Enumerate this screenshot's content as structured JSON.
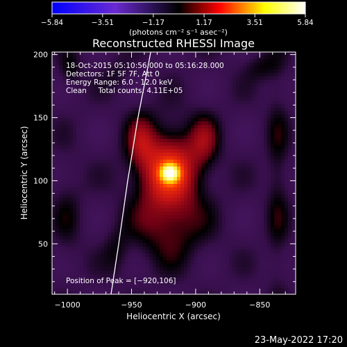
{
  "chart_data": {
    "type": "heatmap",
    "title": "Reconstructed RHESSI Image",
    "xlabel": "Heliocentric X (arcsec)",
    "ylabel": "Heliocentric Y (arcsec)",
    "xlim": [
      -1012,
      -822
    ],
    "ylim": [
      10,
      202
    ],
    "x_ticks": [
      -1000,
      -950,
      -900,
      -850
    ],
    "x_tick_labels": [
      "−1000",
      "−950",
      "−900",
      "−850"
    ],
    "y_ticks": [
      50,
      100,
      150,
      200
    ],
    "y_tick_labels": [
      "50",
      "100",
      "150",
      "200"
    ],
    "colorbar": {
      "min": -5.84,
      "max": 5.84,
      "ticks": [
        -5.84,
        -3.51,
        -1.17,
        1.17,
        3.51,
        5.84
      ],
      "tick_labels": [
        "−5.84",
        "−3.51",
        "−1.17",
        "1.17",
        "3.51",
        "5.84"
      ],
      "unit_label": "(photons cm⁻² s⁻¹ asec⁻²)",
      "colors": [
        "#0000ff",
        "#6a2ad0",
        "#000000",
        "#ff0000",
        "#ffff00",
        "#ffffff"
      ]
    },
    "info_lines": [
      "18-Oct-2015 05:10:56.000 to 05:16:28.000",
      "Detectors: 1F 5F 7F, Att 0",
      "Energy Range: 6.0 - 12.0 keV",
      "Clean     Total counts: 4.11E+05"
    ],
    "peak_label": "Position of Peak = [−920,106]",
    "peak": {
      "x": -920,
      "y": 106,
      "value": 5.84
    },
    "components": [
      {
        "x": -920,
        "y": 106,
        "sx": 5,
        "sy": 5,
        "amp": 4.6
      },
      {
        "x": -921,
        "y": 108,
        "sx": 17,
        "sy": 22,
        "amp": 2.4
      },
      {
        "x": -943,
        "y": 132,
        "sx": 8,
        "sy": 16,
        "amp": 1.0
      },
      {
        "x": -893,
        "y": 132,
        "sx": 8,
        "sy": 15,
        "amp": 1.0
      },
      {
        "x": -921,
        "y": 62,
        "sx": 20,
        "sy": 20,
        "amp": 1.0
      },
      {
        "x": -998,
        "y": 188,
        "sx": 6,
        "sy": 10,
        "amp": 0.7
      },
      {
        "x": -836,
        "y": 100,
        "sx": 6,
        "sy": 65,
        "amp": 0.6
      },
      {
        "x": -848,
        "y": 190,
        "sx": 10,
        "sy": 8,
        "amp": 0.6
      },
      {
        "x": -1000,
        "y": 75,
        "sx": 8,
        "sy": 28,
        "amp": 0.45
      },
      {
        "x": -960,
        "y": 185,
        "sx": 8,
        "sy": 10,
        "amp": 0.4
      },
      {
        "x": -962,
        "y": 45,
        "sx": 7,
        "sy": 14,
        "amp": 0.5
      }
    ],
    "background_level": -0.7,
    "limb_curve": [
      [
        -966,
        10
      ],
      [
        -960,
        50
      ],
      [
        -953,
        100
      ],
      [
        -945,
        150
      ],
      [
        -935,
        202
      ]
    ],
    "timestamp": "23-May-2022 17:20"
  }
}
